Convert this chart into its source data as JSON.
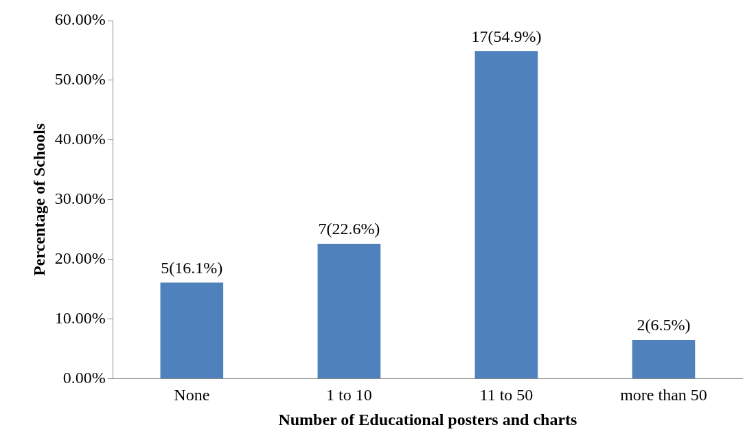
{
  "chart_data": {
    "type": "bar",
    "xlabel": "Number of Educational posters and charts",
    "ylabel": "Percentage of Schools",
    "categories": [
      "None",
      "1 to 10",
      "11 to 50",
      "more than 50"
    ],
    "values": [
      16.1,
      22.6,
      54.9,
      6.5
    ],
    "value_labels": [
      "5(16.1%)",
      "7(22.6%)",
      "17(54.9%)",
      "2(6.5%)"
    ],
    "color": "#4f81bd",
    "ylim": [
      0,
      60
    ],
    "yticks": [
      {
        "value": 0,
        "label": "0.00%"
      },
      {
        "value": 10,
        "label": "10.00%"
      },
      {
        "value": 20,
        "label": "20.00%"
      },
      {
        "value": 30,
        "label": "30.00%"
      },
      {
        "value": 40,
        "label": "40.00%"
      },
      {
        "value": 50,
        "label": "50.00%"
      },
      {
        "value": 60,
        "label": "60.00%"
      }
    ],
    "grid": false,
    "legend": false
  }
}
